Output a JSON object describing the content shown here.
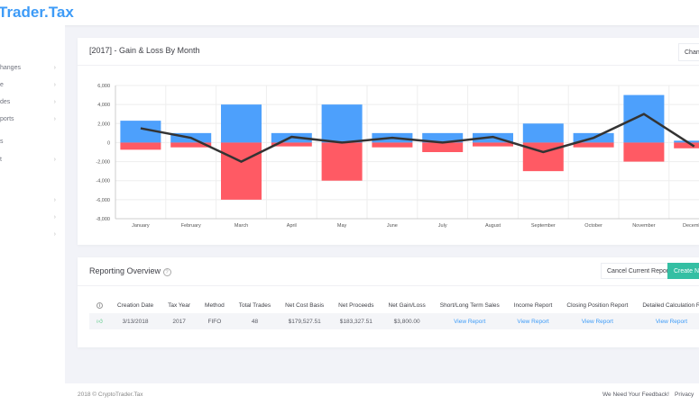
{
  "header": {
    "logo": "Trader.Tax"
  },
  "sidebar": {
    "items": [
      {
        "label": "hanges",
        "chevron": true
      },
      {
        "label": "e",
        "chevron": true
      },
      {
        "label": "des",
        "chevron": true
      },
      {
        "label": "ports",
        "chevron": true
      },
      {
        "label": "s",
        "chevron": false
      },
      {
        "label": "t",
        "chevron": true
      },
      {
        "label": "",
        "chevron": true
      },
      {
        "label": "",
        "chevron": true
      },
      {
        "label": "",
        "chevron": true
      }
    ]
  },
  "chart_card": {
    "title": "[2017] - Gain & Loss By Month",
    "change_button": "Chang"
  },
  "chart_data": {
    "type": "bar",
    "categories": [
      "January",
      "February",
      "March",
      "April",
      "May",
      "June",
      "July",
      "August",
      "September",
      "October",
      "November",
      "December"
    ],
    "yticks": [
      "6,000",
      "4,000",
      "2,000",
      "0",
      "-2,000",
      "-4,000",
      "-6,000",
      "-8,000"
    ],
    "ylim": [
      -8000,
      6000
    ],
    "grid": true,
    "series": [
      {
        "type": "bar",
        "color": "#4da0fc",
        "values": [
          2300,
          1000,
          4000,
          1000,
          4000,
          1000,
          1000,
          1000,
          2000,
          1000,
          5000,
          200
        ]
      },
      {
        "type": "bar",
        "color": "#ff5a64",
        "values": [
          -750,
          -500,
          -6000,
          -400,
          -4000,
          -500,
          -1000,
          -400,
          -3000,
          -500,
          -2000,
          -600
        ]
      },
      {
        "type": "line",
        "color": "#333333",
        "values": [
          1500,
          500,
          -2000,
          600,
          0,
          500,
          0,
          600,
          -1000,
          500,
          3000,
          -400
        ]
      }
    ]
  },
  "reporting": {
    "title": "Reporting Overview",
    "cancel_button": "Cancel Current Report",
    "create_button": "Create New",
    "columns": [
      "Creation Date",
      "Tax Year",
      "Method",
      "Total Trades",
      "Net Cost Basis",
      "Net Proceeds",
      "Net Gain/Loss",
      "Short/Long Term Sales",
      "Income Report",
      "Closing Position Report",
      "Detailed Calculation R"
    ],
    "row": {
      "creation_date": "3/13/2018",
      "tax_year": "2017",
      "method": "FIFO",
      "total_trades": "48",
      "net_cost_basis": "$179,527.51",
      "net_proceeds": "$183,327.51",
      "net_gain_loss": "$3,800.00",
      "short_long": "View Report",
      "income": "View Report",
      "closing": "View Report",
      "detailed": "View Report"
    }
  },
  "footer": {
    "copyright": "2018 © CryptoTrader.Tax",
    "feedback": "We Need Your Feedback!",
    "privacy": "Privacy"
  }
}
